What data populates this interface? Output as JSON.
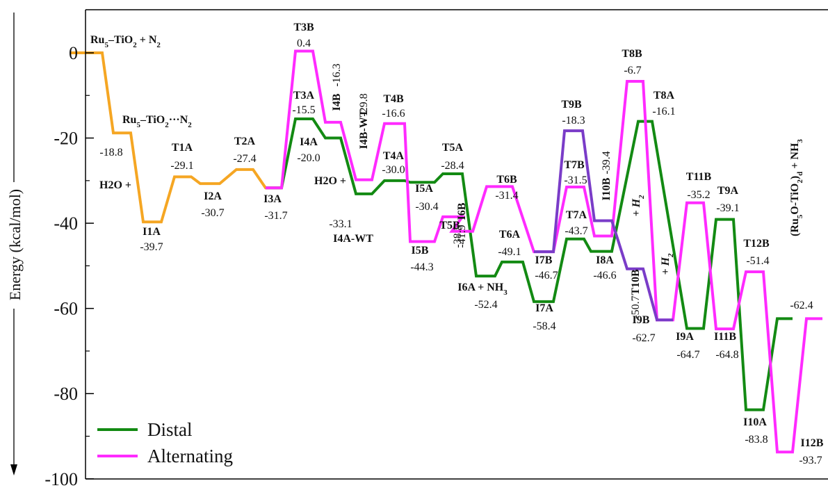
{
  "chart_data": {
    "type": "line",
    "ylabel": "Energy (kcal/mol)",
    "ylim": [
      -100,
      10
    ],
    "yticks": [
      "0",
      "-20",
      "-40",
      "-60",
      "-80",
      "-100"
    ],
    "legend": {
      "position": "bottom-left",
      "entries": [
        "Distal",
        "Alternating"
      ]
    },
    "colors": {
      "common": "#f5a623",
      "distal": "#138a13",
      "alternating": "#ff2bff",
      "branch": "#7a3cc8",
      "axis": "#000000"
    },
    "series": [
      {
        "name": "",
        "color_key": "common",
        "points": [
          {
            "label": "Ru5–TiO2 + N2",
            "value": 0.0
          },
          {
            "label": "Ru5–TiO2···N2",
            "value": -18.8
          },
          {
            "label": "I1A",
            "value": -39.7
          },
          {
            "label": "T1A",
            "value": -29.1
          },
          {
            "label": "I2A",
            "value": -30.7
          },
          {
            "label": "T2A",
            "value": -27.4
          },
          {
            "label": "I3A",
            "value": -31.7
          }
        ]
      },
      {
        "name": "Distal",
        "color_key": "distal",
        "points": [
          {
            "label": "I3A",
            "value": -31.7
          },
          {
            "label": "T3A",
            "value": -15.5
          },
          {
            "label": "I4A",
            "value": -20.0
          },
          {
            "label": "I4A-WT",
            "value": -33.1
          },
          {
            "label": "T4A",
            "value": -30.0
          },
          {
            "label": "I5A",
            "value": -30.4
          },
          {
            "label": "T5A",
            "value": -28.4
          },
          {
            "label": "I6A + NH3",
            "value": -52.4
          },
          {
            "label": "T6A",
            "value": -49.1
          },
          {
            "label": "I7A",
            "value": -58.4
          },
          {
            "label": "T7A",
            "value": -43.7
          },
          {
            "label": "I8A",
            "value": -46.6
          },
          {
            "label": "T8A",
            "value": -16.1
          },
          {
            "label": "I9A",
            "value": -64.7
          },
          {
            "label": "T9A",
            "value": -39.1
          },
          {
            "label": "I10A",
            "value": -83.8
          },
          {
            "label": "(Ru5O-TiO2)d + NH3",
            "value": -62.4
          }
        ]
      },
      {
        "name": "Alternating",
        "color_key": "alternating",
        "points": [
          {
            "label": "I3A",
            "value": -31.7
          },
          {
            "label": "T3B",
            "value": 0.4
          },
          {
            "label": "I4B",
            "value": -16.3
          },
          {
            "label": "I4B-WT",
            "value": -29.8
          },
          {
            "label": "T4B",
            "value": -16.6
          },
          {
            "label": "I5B",
            "value": -44.3
          },
          {
            "label": "T5B",
            "value": -38.5
          },
          {
            "label": "I6B",
            "value": -41.9
          },
          {
            "label": "T6B",
            "value": -31.4
          },
          {
            "label": "I7B",
            "value": -46.7
          },
          {
            "label": "T7B",
            "value": -31.5
          },
          {
            "label": "I8B",
            "value": -43.0
          },
          {
            "label": "T8B",
            "value": -6.7
          },
          {
            "label": "I9B",
            "value": -62.7
          },
          {
            "label": "T11B",
            "value": -35.2
          },
          {
            "label": "I11B",
            "value": -64.8
          },
          {
            "label": "T12B",
            "value": -51.4
          },
          {
            "label": "I12B",
            "value": -93.7
          },
          {
            "label": "(Ru5O-TiO2)d + NH3",
            "value": -62.4
          }
        ]
      },
      {
        "name": "",
        "color_key": "branch",
        "points": [
          {
            "label": "I7B",
            "value": -46.7
          },
          {
            "label": "T9B",
            "value": -18.3
          },
          {
            "label": "I10B",
            "value": -39.4
          },
          {
            "label": "T10B",
            "value": -50.7
          },
          {
            "label": "I9B",
            "value": -62.7
          }
        ]
      }
    ],
    "annotations": [
      {
        "id": "ru5n2",
        "kind": "label",
        "text": "Ru5–TiO2 + N2"
      },
      {
        "id": "ru5n2ads",
        "kind": "label",
        "text": "Ru5–TiO2···N2"
      },
      {
        "id": "h2o1",
        "kind": "label",
        "text": "H2O +"
      },
      {
        "id": "h2o2",
        "kind": "label",
        "text": "H2O +"
      },
      {
        "id": "n1",
        "kind": "value",
        "text": "-18.8"
      },
      {
        "id": "i1a",
        "kind": "label",
        "text": "I1A"
      },
      {
        "id": "n2",
        "kind": "value",
        "text": "-39.7"
      },
      {
        "id": "t1a",
        "kind": "label",
        "text": "T1A"
      },
      {
        "id": "n3",
        "kind": "value",
        "text": "-29.1"
      },
      {
        "id": "i2a",
        "kind": "label",
        "text": "I2A"
      },
      {
        "id": "n4",
        "kind": "value",
        "text": "-30.7"
      },
      {
        "id": "t2a",
        "kind": "label",
        "text": "T2A"
      },
      {
        "id": "n5",
        "kind": "value",
        "text": "-27.4"
      },
      {
        "id": "i3a",
        "kind": "label",
        "text": "I3A"
      },
      {
        "id": "n6",
        "kind": "value",
        "text": "-31.7"
      },
      {
        "id": "t3b",
        "kind": "label",
        "text": "T3B"
      },
      {
        "id": "n7",
        "kind": "value",
        "text": "0.4"
      },
      {
        "id": "t3a",
        "kind": "label",
        "text": "T3A"
      },
      {
        "id": "n8",
        "kind": "value",
        "text": "-15.5"
      },
      {
        "id": "i4a",
        "kind": "label",
        "text": "I4A"
      },
      {
        "id": "n9",
        "kind": "value",
        "text": "-20.0"
      },
      {
        "id": "i4b",
        "kind": "label",
        "text": "I4B"
      },
      {
        "id": "n10",
        "kind": "value",
        "text": "-16.3"
      },
      {
        "id": "i4bwt",
        "kind": "label",
        "text": "I4B-WT"
      },
      {
        "id": "n11",
        "kind": "value",
        "text": "-29.8"
      },
      {
        "id": "n12",
        "kind": "value",
        "text": "-33.1"
      },
      {
        "id": "i4awt",
        "kind": "label",
        "text": "I4A-WT"
      },
      {
        "id": "t4b",
        "kind": "label",
        "text": "T4B"
      },
      {
        "id": "n13",
        "kind": "value",
        "text": "-16.6"
      },
      {
        "id": "t4a",
        "kind": "label",
        "text": "T4A"
      },
      {
        "id": "n14",
        "kind": "value",
        "text": "-30.0"
      },
      {
        "id": "i5a",
        "kind": "label",
        "text": "I5A"
      },
      {
        "id": "n15",
        "kind": "value",
        "text": "-30.4"
      },
      {
        "id": "t5a",
        "kind": "label",
        "text": "T5A"
      },
      {
        "id": "n16",
        "kind": "value",
        "text": "-28.4"
      },
      {
        "id": "i5b",
        "kind": "label",
        "text": "I5B"
      },
      {
        "id": "n17",
        "kind": "value",
        "text": "-44.3"
      },
      {
        "id": "t5b",
        "kind": "label",
        "text": "T5B"
      },
      {
        "id": "n18",
        "kind": "value",
        "text": "-38.5"
      },
      {
        "id": "i6b",
        "kind": "label",
        "text": "I6B"
      },
      {
        "id": "n19",
        "kind": "value",
        "text": "-41.9"
      },
      {
        "id": "t6b",
        "kind": "label",
        "text": "T6B"
      },
      {
        "id": "n20",
        "kind": "value",
        "text": "-31.4"
      },
      {
        "id": "t6a",
        "kind": "label",
        "text": "T6A"
      },
      {
        "id": "n21",
        "kind": "value",
        "text": "-49.1"
      },
      {
        "id": "i6a",
        "kind": "label",
        "text": "I6A + NH3"
      },
      {
        "id": "n22",
        "kind": "value",
        "text": "-52.4"
      },
      {
        "id": "i7b",
        "kind": "label",
        "text": "I7B"
      },
      {
        "id": "n23",
        "kind": "value",
        "text": "-46.7"
      },
      {
        "id": "i7a",
        "kind": "label",
        "text": "I7A"
      },
      {
        "id": "n24",
        "kind": "value",
        "text": "-58.4"
      },
      {
        "id": "t9b",
        "kind": "label",
        "text": "T9B"
      },
      {
        "id": "n25",
        "kind": "value",
        "text": "-18.3"
      },
      {
        "id": "t7b",
        "kind": "label",
        "text": "T7B"
      },
      {
        "id": "n26",
        "kind": "value",
        "text": "-31.5"
      },
      {
        "id": "t7a",
        "kind": "label",
        "text": "T7A"
      },
      {
        "id": "n27",
        "kind": "value",
        "text": "-43.7"
      },
      {
        "id": "i8a",
        "kind": "label",
        "text": "I8A"
      },
      {
        "id": "n28",
        "kind": "value",
        "text": "-46.6"
      },
      {
        "id": "i10b",
        "kind": "label",
        "text": "I10B"
      },
      {
        "id": "n29",
        "kind": "value",
        "text": "-39.4"
      },
      {
        "id": "h2a",
        "kind": "label",
        "text": "+ H2"
      },
      {
        "id": "t10b",
        "kind": "label",
        "text": "T10B"
      },
      {
        "id": "n30",
        "kind": "value",
        "text": "-50.7"
      },
      {
        "id": "h2b",
        "kind": "label",
        "text": "+ H2"
      },
      {
        "id": "t8b",
        "kind": "label",
        "text": "T8B"
      },
      {
        "id": "n31",
        "kind": "value",
        "text": "-6.7"
      },
      {
        "id": "t8a",
        "kind": "label",
        "text": "T8A"
      },
      {
        "id": "n32",
        "kind": "value",
        "text": "-16.1"
      },
      {
        "id": "i9b",
        "kind": "label",
        "text": "I9B"
      },
      {
        "id": "n33",
        "kind": "value",
        "text": "-62.7"
      },
      {
        "id": "t11b",
        "kind": "label",
        "text": "T11B"
      },
      {
        "id": "n34",
        "kind": "value",
        "text": "-35.2"
      },
      {
        "id": "t9a",
        "kind": "label",
        "text": "T9A"
      },
      {
        "id": "n35",
        "kind": "value",
        "text": "-39.1"
      },
      {
        "id": "i9a",
        "kind": "label",
        "text": "I9A"
      },
      {
        "id": "n36",
        "kind": "value",
        "text": "-64.7"
      },
      {
        "id": "i11b",
        "kind": "label",
        "text": "I11B"
      },
      {
        "id": "n37",
        "kind": "value",
        "text": "-64.8"
      },
      {
        "id": "t12b",
        "kind": "label",
        "text": "T12B"
      },
      {
        "id": "n38",
        "kind": "value",
        "text": "-51.4"
      },
      {
        "id": "prod",
        "kind": "label",
        "text": "(Ru5O-TiO2)d + NH3"
      },
      {
        "id": "n39",
        "kind": "value",
        "text": "-62.4"
      },
      {
        "id": "i10a",
        "kind": "label",
        "text": "I10A"
      },
      {
        "id": "n40",
        "kind": "value",
        "text": "-83.8"
      },
      {
        "id": "i12b",
        "kind": "label",
        "text": "I12B"
      },
      {
        "id": "n41",
        "kind": "value",
        "text": "-93.7"
      }
    ]
  }
}
